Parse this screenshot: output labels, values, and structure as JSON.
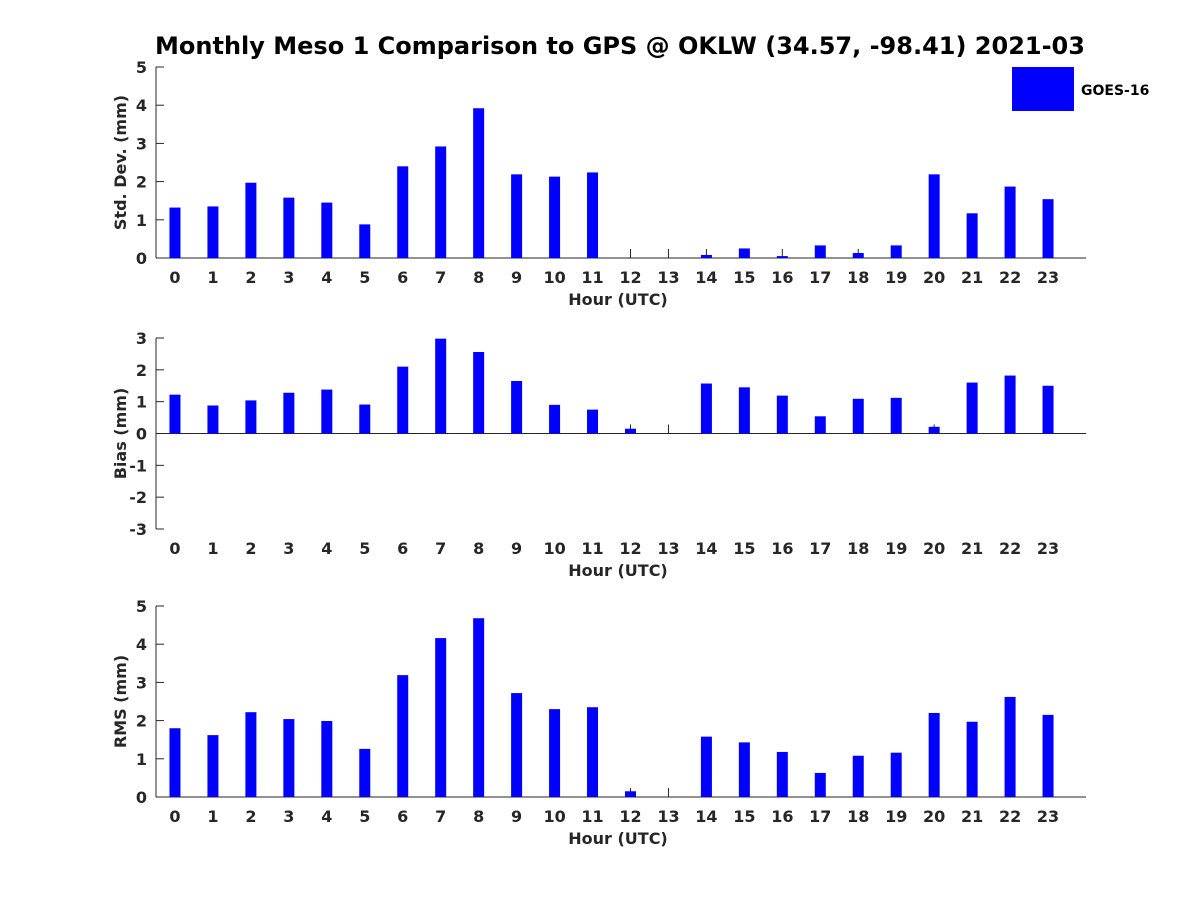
{
  "chart_data": {
    "title": "Monthly Meso 1 Comparison to GPS @ OKLW (34.57, -98.41) 2021-03",
    "legend": {
      "label": "GOES-16",
      "color": "#0000ff",
      "placement": "top-right"
    },
    "series_color": "#0000ff",
    "panels": [
      {
        "type": "bar",
        "ylabel": "Std. Dev. (mm)",
        "xlabel": "Hour (UTC)",
        "ylim": [
          0,
          5
        ],
        "yticks": [
          "0",
          "1",
          "2",
          "3",
          "4",
          "5"
        ],
        "categories": [
          "0",
          "1",
          "2",
          "3",
          "4",
          "5",
          "6",
          "7",
          "8",
          "9",
          "10",
          "11",
          "12",
          "13",
          "14",
          "15",
          "16",
          "17",
          "18",
          "19",
          "20",
          "21",
          "22",
          "23"
        ],
        "values": [
          1.32,
          1.35,
          1.97,
          1.58,
          1.45,
          0.88,
          2.4,
          2.92,
          3.92,
          2.19,
          2.13,
          2.24,
          0,
          0,
          0.08,
          0.25,
          0.05,
          0.33,
          0.13,
          0.33,
          2.19,
          1.17,
          1.87,
          1.54
        ]
      },
      {
        "type": "bar",
        "ylabel": "Bias (mm)",
        "xlabel": "Hour (UTC)",
        "ylim": [
          -3,
          3
        ],
        "yticks": [
          "-3",
          "-2",
          "-1",
          "0",
          "1",
          "2",
          "3"
        ],
        "categories": [
          "0",
          "1",
          "2",
          "3",
          "4",
          "5",
          "6",
          "7",
          "8",
          "9",
          "10",
          "11",
          "12",
          "13",
          "14",
          "15",
          "16",
          "17",
          "18",
          "19",
          "20",
          "21",
          "22",
          "23"
        ],
        "values": [
          1.22,
          0.88,
          1.04,
          1.28,
          1.38,
          0.91,
          2.1,
          2.98,
          2.56,
          1.65,
          0.9,
          0.75,
          0.15,
          0,
          1.57,
          1.45,
          1.19,
          0.54,
          1.09,
          1.12,
          0.21,
          1.6,
          1.82,
          1.5
        ]
      },
      {
        "type": "bar",
        "ylabel": "RMS (mm)",
        "xlabel": "Hour (UTC)",
        "ylim": [
          0,
          5
        ],
        "yticks": [
          "0",
          "1",
          "2",
          "3",
          "4",
          "5"
        ],
        "categories": [
          "0",
          "1",
          "2",
          "3",
          "4",
          "5",
          "6",
          "7",
          "8",
          "9",
          "10",
          "11",
          "12",
          "13",
          "14",
          "15",
          "16",
          "17",
          "18",
          "19",
          "20",
          "21",
          "22",
          "23"
        ],
        "values": [
          1.8,
          1.62,
          2.22,
          2.04,
          1.99,
          1.26,
          3.19,
          4.16,
          4.68,
          2.72,
          2.3,
          2.35,
          0.15,
          0,
          1.58,
          1.43,
          1.18,
          0.63,
          1.08,
          1.16,
          2.2,
          1.97,
          2.62,
          2.15
        ]
      }
    ]
  }
}
